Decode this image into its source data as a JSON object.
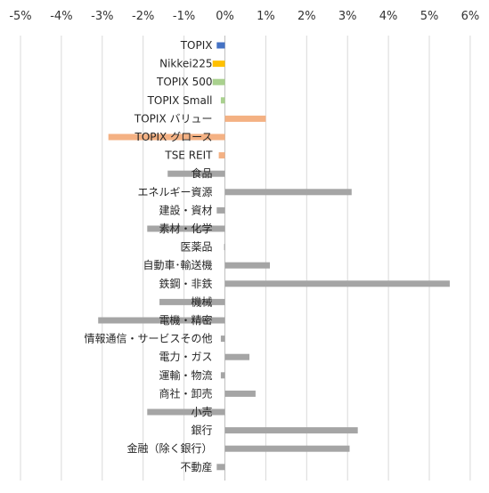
{
  "chart_data": {
    "type": "bar",
    "orientation": "horizontal",
    "xlim": [
      -5,
      6
    ],
    "x_ticks": [
      "-5%",
      "-4%",
      "-3%",
      "-2%",
      "-1%",
      "0%",
      "1%",
      "2%",
      "3%",
      "4%",
      "5%",
      "6%"
    ],
    "grid": true,
    "legend": "none",
    "categories": [
      "TOPIX",
      "Nikkei225",
      "TOPIX 500",
      "TOPIX Small",
      "TOPIX バリュー",
      "TOPIX グロース",
      "TSE REIT",
      "食品",
      "エネルギー資源",
      "建設・資材",
      "素材・化学",
      "医薬品",
      "自動車･輸送機",
      "鉄鋼・非鉄",
      "機械",
      "電機・精密",
      "情報通信・サービスその他",
      "電力・ガス",
      "運輸・物流",
      "商社・卸売",
      "小売",
      "銀行",
      "金融（除く銀行）",
      "不動産"
    ],
    "values": [
      -0.2,
      -0.3,
      -0.3,
      -0.1,
      1.0,
      -2.85,
      -0.15,
      -1.4,
      3.1,
      -0.2,
      -1.9,
      -0.02,
      1.1,
      5.5,
      -1.6,
      -3.1,
      -0.1,
      0.6,
      -0.1,
      0.75,
      -1.9,
      3.25,
      3.05,
      -0.2
    ],
    "bar_colors": [
      "#4472c4",
      "#ffc000",
      "#a9d18e",
      "#a9d18e",
      "#f4b183",
      "#f4b183",
      "#f4b183",
      "#a5a5a5",
      "#a5a5a5",
      "#a5a5a5",
      "#a5a5a5",
      "#a5a5a5",
      "#a5a5a5",
      "#a5a5a5",
      "#a5a5a5",
      "#a5a5a5",
      "#a5a5a5",
      "#a5a5a5",
      "#a5a5a5",
      "#a5a5a5",
      "#a5a5a5",
      "#a5a5a5",
      "#a5a5a5",
      "#a5a5a5"
    ],
    "title": "",
    "xlabel": "",
    "ylabel": ""
  }
}
